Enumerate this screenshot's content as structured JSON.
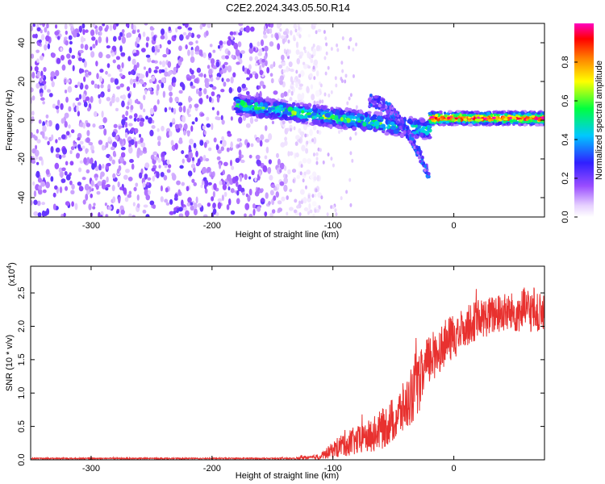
{
  "title": "C2E2.2024.343.05.50.R14",
  "chart_data": [
    {
      "type": "heatmap",
      "name": "spectrogram",
      "xlabel": "Height of straight line (km)",
      "ylabel": "Frequency (Hz)",
      "xlim": [
        -350,
        75
      ],
      "ylim": [
        -50,
        50
      ],
      "xticks": [
        -300,
        -200,
        -100,
        0
      ],
      "yticks": [
        -40,
        -20,
        0,
        20,
        40
      ],
      "xtick_labels": [
        "-300",
        "-200",
        "-100",
        "0"
      ],
      "ytick_labels": [
        "-40",
        "-20",
        "0",
        "20",
        "40"
      ],
      "colorbar": {
        "label": "Normalized spectral amplitude",
        "range": [
          0,
          1
        ],
        "ticks": [
          0.0,
          0.2,
          0.4,
          0.6,
          0.8
        ],
        "tick_labels": [
          "0.0",
          "0.2",
          "0.4",
          "0.6",
          "0.8"
        ],
        "colormap": "rainbow (white-violet-blue-cyan-green-yellow-orange-red-magenta)"
      },
      "features": [
        {
          "region": "noise",
          "x_range": [
            -350,
            -140
          ],
          "freq_range": [
            -50,
            50
          ],
          "amplitude": 0.15
        },
        {
          "region": "signal",
          "x_range": [
            -180,
            -20
          ],
          "freq_start": 8,
          "freq_end": -5,
          "amplitude": 0.45
        },
        {
          "region": "signal",
          "x_range": [
            -20,
            75
          ],
          "freq_center": 1,
          "amplitude": 0.95
        }
      ]
    },
    {
      "type": "line",
      "name": "snr",
      "xlabel": "Height of straight line (km)",
      "ylabel": "SNR (10 * v/v)",
      "y_multiplier_label": "(x10",
      "y_multiplier_exp": "4",
      "xlim": [
        -350,
        75
      ],
      "ylim": [
        0,
        2.9
      ],
      "xticks": [
        -300,
        -200,
        -100,
        0
      ],
      "yticks": [
        0.0,
        0.5,
        1.0,
        1.5,
        2.0,
        2.5
      ],
      "xtick_labels": [
        "-300",
        "-200",
        "-100",
        "0"
      ],
      "ytick_labels": [
        "0.0",
        "0.5",
        "1.0",
        "1.5",
        "2.0",
        "2.5"
      ],
      "series": [
        {
          "name": "SNR",
          "color": "#e8312f",
          "envelope_x": [
            -350,
            -130,
            -125,
            -120,
            -110,
            -100,
            -90,
            -80,
            -70,
            -60,
            -50,
            -40,
            -30,
            -20,
            -10,
            0,
            10,
            20,
            30,
            40,
            50,
            60,
            70,
            75
          ],
          "envelope_mean": [
            0.02,
            0.02,
            0.04,
            0.03,
            0.05,
            0.15,
            0.25,
            0.28,
            0.35,
            0.45,
            0.6,
            0.8,
            1.1,
            1.5,
            1.7,
            1.85,
            2.0,
            2.1,
            2.15,
            2.2,
            2.2,
            2.25,
            2.2,
            2.15
          ],
          "envelope_amp": [
            0.01,
            0.01,
            0.04,
            0.02,
            0.05,
            0.12,
            0.2,
            0.22,
            0.25,
            0.3,
            0.35,
            0.4,
            0.45,
            0.4,
            0.35,
            0.35,
            0.3,
            0.3,
            0.3,
            0.3,
            0.3,
            0.35,
            0.3,
            0.3
          ]
        }
      ]
    }
  ]
}
